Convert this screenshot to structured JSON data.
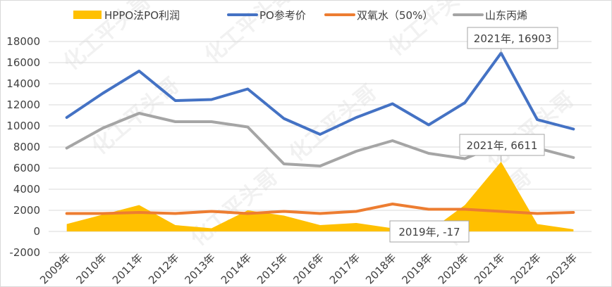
{
  "chart_data": {
    "type": "line",
    "title": "",
    "xlabel": "",
    "ylabel": "",
    "categories": [
      "2009年",
      "2010年",
      "2011年",
      "2012年",
      "2013年",
      "2014年",
      "2015年",
      "2016年",
      "2017年",
      "2018年",
      "2019年",
      "2020年",
      "2021年",
      "2022年",
      "2023年"
    ],
    "ylim": [
      -2000,
      18000
    ],
    "yticks": [
      "-2000",
      "0",
      "2000",
      "4000",
      "6000",
      "8000",
      "10000",
      "12000",
      "14000",
      "16000",
      "18000"
    ],
    "grid": true,
    "legend_position": "top",
    "series": [
      {
        "name": "HPPO法PO利润",
        "type": "area",
        "color": "#FFC000",
        "values": [
          700,
          1600,
          2500,
          600,
          300,
          2000,
          1500,
          600,
          800,
          300,
          -17,
          2500,
          6611,
          700,
          200
        ]
      },
      {
        "name": "PO参考价",
        "type": "line",
        "color": "#4472C4",
        "values": [
          10800,
          13100,
          15200,
          12400,
          12500,
          13500,
          10700,
          9200,
          10800,
          12100,
          10100,
          12200,
          16903,
          10600,
          9700
        ]
      },
      {
        "name": "双氧水（50%）",
        "type": "line",
        "color": "#ED7D31",
        "values": [
          1700,
          1700,
          1800,
          1700,
          1900,
          1700,
          1900,
          1700,
          1900,
          2600,
          2100,
          2100,
          1900,
          1700,
          1800
        ]
      },
      {
        "name": "山东丙烯",
        "type": "line",
        "color": "#A5A5A5",
        "values": [
          7900,
          9800,
          11200,
          10400,
          10400,
          9900,
          6400,
          6200,
          7600,
          8600,
          7400,
          6900,
          8300,
          7900,
          7000
        ]
      }
    ],
    "annotations": [
      {
        "text": "2021年, 16903",
        "series": "PO参考价",
        "category": "2021年"
      },
      {
        "text": "2021年, 6611",
        "series": "HPPO法PO利润",
        "category": "2021年"
      },
      {
        "text": "2019年, -17",
        "series": "HPPO法PO利润",
        "category": "2019年"
      }
    ],
    "watermark": "化工平头哥"
  }
}
